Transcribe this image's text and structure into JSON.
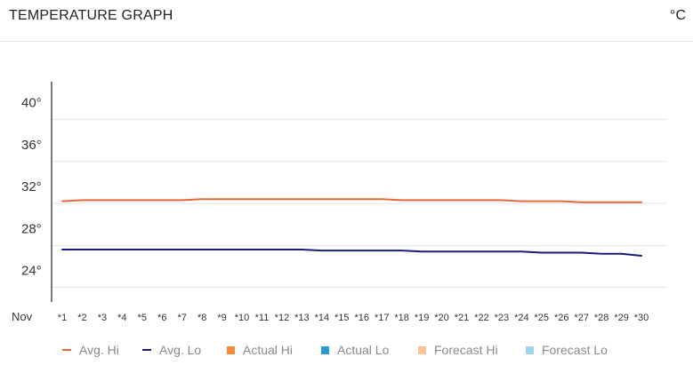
{
  "header": {
    "title": "TEMPERATURE GRAPH",
    "unit": "°C"
  },
  "chart_data": {
    "type": "line",
    "title": "TEMPERATURE GRAPH",
    "xlabel": "Nov",
    "ylabel": "",
    "ylim": [
      21,
      42
    ],
    "yticks": [
      "40°",
      "36°",
      "32°",
      "28°",
      "24°"
    ],
    "ytick_values": [
      40,
      36,
      32,
      28,
      24
    ],
    "grid": true,
    "legend_position": "bottom",
    "categories": [
      "*1",
      "*2",
      "*3",
      "*4",
      "*5",
      "*6",
      "*7",
      "*8",
      "*9",
      "*10",
      "*11",
      "*12",
      "*13",
      "*14",
      "*15",
      "*16",
      "*17",
      "*18",
      "*19",
      "*20",
      "*21",
      "*22",
      "*23",
      "*24",
      "*25",
      "*26",
      "*27",
      "*28",
      "*29",
      "*30"
    ],
    "series": [
      {
        "name": "Avg. Hi",
        "color": "#e8683a",
        "values": [
          30.6,
          30.7,
          30.7,
          30.7,
          30.7,
          30.7,
          30.7,
          30.8,
          30.8,
          30.8,
          30.8,
          30.8,
          30.8,
          30.8,
          30.8,
          30.8,
          30.8,
          30.7,
          30.7,
          30.7,
          30.7,
          30.7,
          30.7,
          30.6,
          30.6,
          30.6,
          30.5,
          30.5,
          30.5,
          30.5
        ]
      },
      {
        "name": "Avg. Lo",
        "color": "#1a1a7a",
        "values": [
          26.0,
          26.0,
          26.0,
          26.0,
          26.0,
          26.0,
          26.0,
          26.0,
          26.0,
          26.0,
          26.0,
          26.0,
          26.0,
          25.9,
          25.9,
          25.9,
          25.9,
          25.9,
          25.8,
          25.8,
          25.8,
          25.8,
          25.8,
          25.8,
          25.7,
          25.7,
          25.7,
          25.6,
          25.6,
          25.4
        ]
      }
    ],
    "legend": [
      {
        "name": "Avg. Hi",
        "kind": "line",
        "color": "#e8683a"
      },
      {
        "name": "Avg. Lo",
        "kind": "line",
        "color": "#1a1a7a"
      },
      {
        "name": "Actual Hi",
        "kind": "square",
        "color": "#f58b38"
      },
      {
        "name": "Actual Lo",
        "kind": "square",
        "color": "#2a9ad6"
      },
      {
        "name": "Forecast Hi",
        "kind": "square",
        "color": "#f9c49a"
      },
      {
        "name": "Forecast Lo",
        "kind": "square",
        "color": "#9fd2ec"
      }
    ]
  }
}
